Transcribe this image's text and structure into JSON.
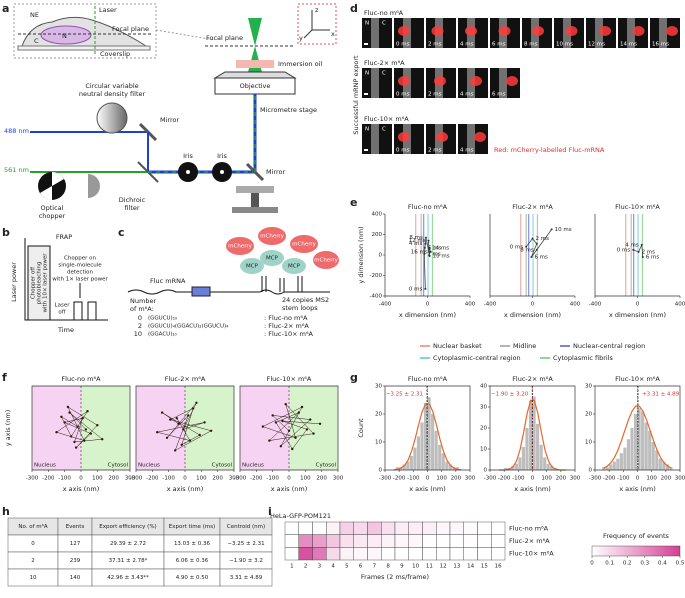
{
  "panel_labels": [
    "a",
    "b",
    "c",
    "d",
    "e",
    "f",
    "g",
    "h",
    "i"
  ],
  "a": {
    "ne": "NE",
    "laser": "Laser",
    "focal_plane": "Focal plane",
    "n": "N",
    "c": "C",
    "coverslip": "Coverslip",
    "nd_filter": [
      "Circular variable",
      "neutral density filter"
    ],
    "mirror": "Mirror",
    "blue_line": "488 nm",
    "green_line": "561 nm",
    "chopper": [
      "Optical",
      "chopper"
    ],
    "iris": "Iris",
    "dichroic": [
      "Dichroic",
      "filter"
    ],
    "objective": "Objective",
    "oil": "Immersion oil",
    "stage": "Micrometre stage",
    "axes": [
      "z",
      "y",
      "x"
    ]
  },
  "b": {
    "title": "FRAP",
    "y_label": "Laser power",
    "x_label": "Time",
    "bleach": [
      "Chopper off",
      "photobleaching",
      "with 10× laser power"
    ],
    "detect": [
      "Chopper on",
      "single-molecule",
      "detection",
      "with 1× laser power"
    ],
    "off": [
      "Laser",
      "off"
    ]
  },
  "c": {
    "mrna": "Fluc mRNA",
    "mcherry": "mCherry",
    "mcp": "MCP",
    "loops": [
      "24 copies MS2",
      "stem loops"
    ],
    "number": [
      "Number",
      "of m⁶A:"
    ],
    "constructs": [
      {
        "n": "0",
        "seq": "(GGUCU)₁₀",
        "name": ": Fluc-no m⁶A"
      },
      {
        "n": "2",
        "seq": "(GGUCU)₄(GGACU)₂(GGUCU)₄",
        "name": ": Fluc-2× m⁶A"
      },
      {
        "n": "10",
        "seq": "(GGACU)₁₀",
        "name": ": Fluc-10× m⁶A"
      }
    ]
  },
  "d": {
    "side_label": "Successful mRNP export",
    "nc": [
      "N",
      "C"
    ],
    "rows": [
      {
        "title": "Fluc-no m⁶A",
        "frames": [
          "0 ms",
          "2 ms",
          "4 ms",
          "6 ms",
          "8 ms",
          "10 ms",
          "12 ms",
          "14 ms",
          "16 ms"
        ]
      },
      {
        "title": "Fluc-2× m⁶A",
        "frames": [
          "0 ms",
          "2 ms",
          "4 ms",
          "6 ms"
        ]
      },
      {
        "title": "Fluc-10× m⁶A",
        "frames": [
          "0 ms",
          "2 ms",
          "4 ms"
        ]
      }
    ],
    "caption": "Red: mCherry-labelled Fluc-mRNA"
  },
  "e_legend": [
    {
      "name": "Nuclear basket",
      "color": "#e8847a",
      "x": -110
    },
    {
      "name": "Midline",
      "color": "#9a9a9a",
      "x": -60
    },
    {
      "name": "Nuclear-central region",
      "color": "#4a5bd4",
      "x": -35
    },
    {
      "name": "Cytoplasmic-central region",
      "color": "#56c7d6",
      "x": 5
    },
    {
      "name": "Cytoplasmic fibrils",
      "color": "#6cc96c",
      "x": 45
    }
  ],
  "h": {
    "header": [
      "No. of m⁶A",
      "Events",
      "Export efficiency (%)",
      "Export time (ms)",
      "Centroid (nm)"
    ],
    "rows": [
      [
        "0",
        "127",
        "29.39 ± 2.72",
        "13.03 ± 0.36",
        "−3.25 ± 2.31"
      ],
      [
        "2",
        "239",
        "37.31 ± 2.78*",
        "6.06 ± 0.36",
        "−1.90 ± 3.2"
      ],
      [
        "10",
        "140",
        "42.96 ± 3.43**",
        "4.90 ± 0.50",
        "3.31 ± 4.89"
      ]
    ]
  },
  "chart_data": [
    {
      "type": "line",
      "title": "Fluc-no m⁶A",
      "x_label": "x dimension (nm)",
      "y_label": "y dimension (nm)",
      "xlim": [
        -400,
        400
      ],
      "ylim": [
        -400,
        400
      ],
      "xticks": [
        -400,
        0,
        400
      ],
      "yticks": [
        -400,
        -200,
        0,
        200,
        400
      ],
      "series": [
        {
          "color": "#333333",
          "x": [
            -20,
            -30,
            -20,
            -25,
            -15,
            20,
            10,
            15,
            30
          ],
          "y": [
            -330,
            10,
            110,
            70,
            170,
            -10,
            140,
            70,
            30
          ],
          "point_labels": [
            "0 ms",
            "2 ms",
            "4 ms",
            "6 ms",
            "8 ms",
            "10 ms",
            "12 ms",
            "14 ms",
            "16 ms"
          ]
        }
      ]
    },
    {
      "type": "line",
      "title": "Fluc-2× m⁶A",
      "x_label": "x dimension (nm)",
      "xlim": [
        -400,
        400
      ],
      "ylim": [
        -400,
        400
      ],
      "xticks": [
        -400,
        0,
        400
      ],
      "series": [
        {
          "color": "#333333",
          "x": [
            -60,
            0,
            40,
            -10,
            40,
            180
          ],
          "y": [
            80,
            160,
            110,
            -20,
            50,
            250
          ],
          "point_labels": [
            "0 ms",
            "2 ms",
            null,
            "6 ms",
            "8 ms",
            "10 ms"
          ]
        }
      ]
    },
    {
      "type": "line",
      "title": "Fluc-10× m⁶A",
      "x_label": "x dimension (nm)",
      "xlim": [
        -400,
        400
      ],
      "ylim": [
        -400,
        400
      ],
      "xticks": [
        -400,
        0,
        400
      ],
      "series": [
        {
          "color": "#333333",
          "x": [
            -40,
            10,
            40,
            50
          ],
          "y": [
            50,
            30,
            100,
            -20
          ],
          "point_labels": [
            "0 ms",
            "2 ms",
            "4 ms",
            "6 ms"
          ]
        }
      ]
    },
    {
      "type": "scatter",
      "title": "Fluc-no m⁶A",
      "x_label": "x axis (nm)",
      "y_label": "y axis (nm)",
      "xlim": [
        -300,
        300
      ],
      "ylim": [
        -300,
        300
      ],
      "xticks": [
        -300,
        -200,
        -100,
        0,
        100,
        200,
        300
      ],
      "regions": [
        {
          "label": "Nucleus",
          "color": "#f6d3f2"
        },
        {
          "label": "Cytosol",
          "color": "#d6f3cc"
        }
      ],
      "series": [
        {
          "color": "#2b1a12",
          "x": [
            -20,
            -120,
            -60,
            40,
            -150,
            20,
            -80,
            100,
            -30,
            60,
            -100,
            10,
            -40,
            130,
            -70,
            30
          ],
          "y": [
            10,
            80,
            -60,
            120,
            -30,
            -90,
            150,
            20,
            -140,
            -40,
            40,
            70,
            -100,
            -80,
            110,
            -10
          ]
        }
      ]
    },
    {
      "type": "scatter",
      "title": "Fluc-2× m⁶A",
      "x_label": "x axis (nm)",
      "xlim": [
        -300,
        300
      ],
      "ylim": [
        -300,
        300
      ],
      "xticks": [
        -300,
        -200,
        -100,
        0,
        100,
        200,
        300
      ],
      "regions": [
        {
          "label": "Nucleus",
          "color": "#f6d3f2"
        },
        {
          "label": "Cytosol",
          "color": "#d6f3cc"
        }
      ],
      "series": [
        {
          "color": "#2b1a12",
          "x": [
            -40,
            -140,
            90,
            -20,
            50,
            -90,
            160,
            -60,
            20,
            -110,
            70,
            -10,
            120,
            -170,
            30,
            -50
          ],
          "y": [
            30,
            110,
            -50,
            -120,
            140,
            60,
            -20,
            -160,
            90,
            -70,
            180,
            -10,
            40,
            -30,
            -90,
            70
          ]
        }
      ]
    },
    {
      "type": "scatter",
      "title": "Fluc-10× m⁶A",
      "x_label": "x axis (nm)",
      "xlim": [
        -300,
        300
      ],
      "ylim": [
        -300,
        300
      ],
      "xticks": [
        -300,
        -200,
        -100,
        0,
        100,
        200,
        300
      ],
      "regions": [
        {
          "label": "Nucleus",
          "color": "#f6d3f2"
        },
        {
          "label": "Cytosol",
          "color": "#d6f3cc"
        }
      ],
      "series": [
        {
          "color": "#2b1a12",
          "x": [
            0,
            -100,
            130,
            -50,
            80,
            -160,
            40,
            -20,
            150,
            -120,
            60,
            -80,
            20,
            110,
            -40,
            190
          ],
          "y": [
            -20,
            90,
            60,
            -130,
            150,
            10,
            -70,
            170,
            -40,
            -90,
            110,
            40,
            -150,
            -10,
            50,
            30
          ]
        }
      ]
    },
    {
      "type": "histogram",
      "title": "Fluc-no m⁶A",
      "x_label": "x axis (nm)",
      "y_label": "Count",
      "xlim": [
        -300,
        300
      ],
      "ylim": [
        0,
        30
      ],
      "xticks": [
        -300,
        -200,
        -100,
        0,
        100,
        200,
        300
      ],
      "yticks": [
        0,
        10,
        20,
        30
      ],
      "color": "#bdbdbd",
      "curve_color": "#e4682c",
      "bins": [
        -250,
        -225,
        -200,
        -175,
        -150,
        -125,
        -100,
        -75,
        -50,
        -25,
        0,
        25,
        50,
        75,
        100,
        125,
        150,
        175,
        200,
        225,
        250
      ],
      "values": [
        0,
        1,
        1,
        2,
        3,
        5,
        8,
        12,
        17,
        24,
        26,
        20,
        14,
        9,
        6,
        3,
        2,
        1,
        1,
        0
      ],
      "curve": [
        0.1,
        0.2,
        0.7,
        1.6,
        3.5,
        6.7,
        11.1,
        16.2,
        20.9,
        23.6,
        23.6,
        20.9,
        16.2,
        11.1,
        6.7,
        3.5,
        1.6,
        0.7,
        0.2,
        0.1
      ],
      "annotation": {
        "value": -3.25,
        "label": "−3.25 ± 2.31"
      }
    },
    {
      "type": "histogram",
      "title": "Fluc-2× m⁶A",
      "x_label": "x axis (nm)",
      "xlim": [
        -300,
        300
      ],
      "ylim": [
        0,
        40
      ],
      "xticks": [
        -300,
        -200,
        -100,
        0,
        100,
        200,
        300
      ],
      "yticks": [
        0,
        10,
        20,
        30,
        40
      ],
      "color": "#bdbdbd",
      "curve_color": "#e4682c",
      "bins": [
        -250,
        -225,
        -200,
        -175,
        -150,
        -125,
        -100,
        -75,
        -50,
        -25,
        0,
        25,
        50,
        75,
        100,
        125,
        150,
        175,
        200,
        225,
        250
      ],
      "values": [
        0,
        0,
        1,
        1,
        2,
        3,
        6,
        11,
        20,
        33,
        35,
        22,
        12,
        6,
        3,
        2,
        1,
        0,
        0,
        0
      ],
      "curve": [
        0,
        0,
        0.1,
        0.4,
        1.5,
        4.3,
        9.7,
        18,
        27.1,
        33.2,
        33.2,
        27.1,
        18,
        9.7,
        4.3,
        1.5,
        0.4,
        0.1,
        0,
        0
      ],
      "annotation": {
        "value": -1.9,
        "label": "−1.90 ± 3.20"
      }
    },
    {
      "type": "histogram",
      "title": "Fluc-10× m⁶A",
      "x_label": "x axis (nm)",
      "xlim": [
        -300,
        300
      ],
      "ylim": [
        0,
        30
      ],
      "xticks": [
        -300,
        -200,
        -100,
        0,
        100,
        200,
        300
      ],
      "yticks": [
        0,
        10,
        20,
        30
      ],
      "color": "#bdbdbd",
      "curve_color": "#e4682c",
      "bins": [
        -250,
        -225,
        -200,
        -175,
        -150,
        -125,
        -100,
        -75,
        -50,
        -25,
        0,
        25,
        50,
        75,
        100,
        125,
        150,
        175,
        200,
        225,
        250
      ],
      "values": [
        1,
        1,
        2,
        3,
        4,
        6,
        8,
        11,
        15,
        20,
        22,
        21,
        17,
        14,
        10,
        7,
        4,
        3,
        2,
        1
      ],
      "curve": [
        0.7,
        1.4,
        2.6,
        4.5,
        7.2,
        10.6,
        14.4,
        18.1,
        21.1,
        22.8,
        22.8,
        21.1,
        18.1,
        14.4,
        10.6,
        7.2,
        4.5,
        2.6,
        1.4,
        0.7
      ],
      "annotation": {
        "value": 3.31,
        "label": "+3.31 ± 4.89"
      }
    },
    {
      "type": "heatmap",
      "title": "HeLa-GFP-POM121",
      "x_label": "Frames (2 ms/frame)",
      "categories": [
        "1",
        "2",
        "3",
        "4",
        "5",
        "6",
        "7",
        "8",
        "9",
        "10",
        "11",
        "12",
        "13",
        "14",
        "15",
        "16"
      ],
      "row_labels": [
        "Fluc-no m⁶A",
        "Fluc-2× m⁶A",
        "Fluc-10× m⁶A"
      ],
      "values": [
        [
          0,
          0,
          0,
          0.03,
          0.12,
          0.1,
          0.15,
          0.08,
          0.05,
          0.05,
          0.04,
          0.02,
          0.02,
          0.01,
          0,
          0
        ],
        [
          0,
          0.3,
          0.25,
          0.15,
          0.08,
          0.06,
          0.05,
          0.03,
          0.02,
          0.02,
          0,
          0,
          0,
          0,
          0,
          0
        ],
        [
          0,
          0.45,
          0.35,
          0.1,
          0.03,
          0.02,
          0.02,
          0,
          0,
          0,
          0,
          0,
          0,
          0,
          0,
          0
        ]
      ],
      "colorbar_label": "Frequency of events",
      "clim": [
        0,
        0.5
      ],
      "cticks": [
        0,
        0.1,
        0.2,
        0.3,
        0.4,
        0.5
      ],
      "colors": [
        "#ffffff",
        "#d43f96"
      ]
    }
  ]
}
